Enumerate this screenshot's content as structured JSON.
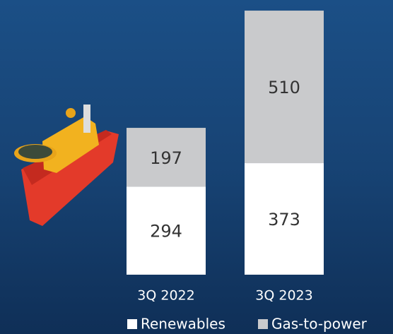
{
  "chart_data": {
    "type": "stacked-bar",
    "categories": [
      "3Q 2022",
      "3Q 2023"
    ],
    "series": [
      {
        "name": "Renewables",
        "color": "#ffffff",
        "values": [
          294,
          373
        ]
      },
      {
        "name": "Gas-to-power",
        "color": "#c9cacc",
        "values": [
          197,
          510
        ]
      }
    ]
  }
}
